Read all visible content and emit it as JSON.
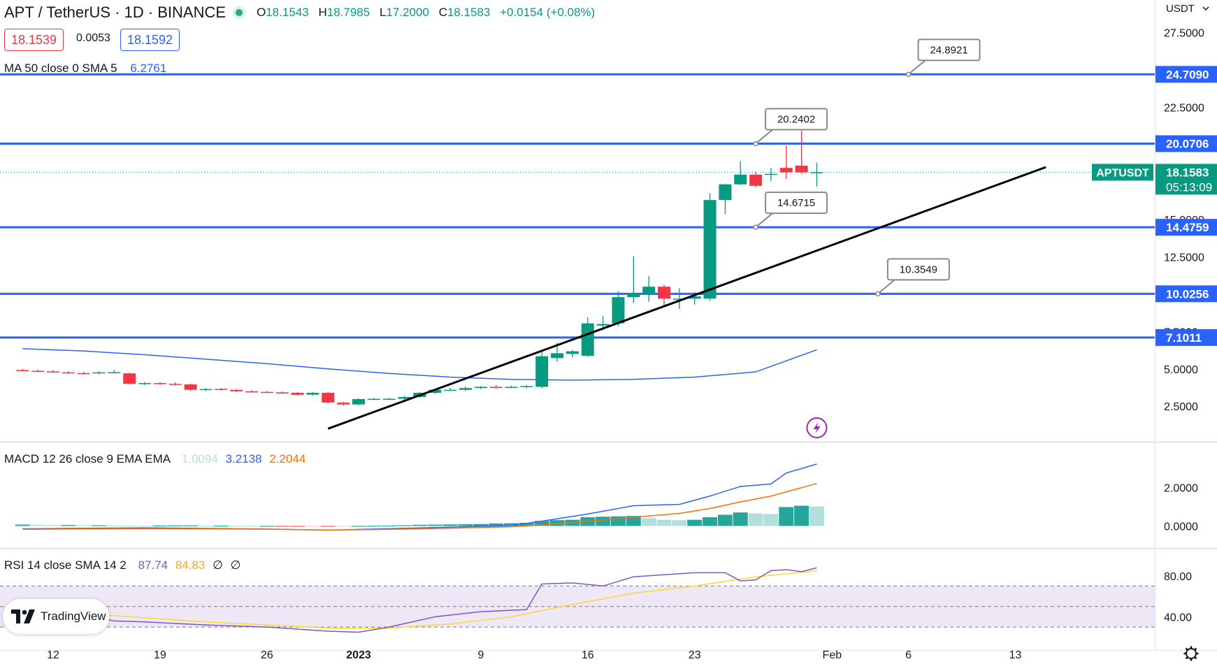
{
  "header": {
    "symbol_line": "APT / TetherUS · 1D · BINANCE",
    "open_label": "O",
    "open": "18.1543",
    "high_label": "H",
    "high": "18.7985",
    "low_label": "L",
    "low": "17.2000",
    "close_label": "C",
    "close": "18.1583",
    "change": "+0.0154 (+0.08%)",
    "sell_price": "18.1539",
    "spread": "0.0053",
    "buy_price": "18.1592"
  },
  "currency_menu": "USDT",
  "ma_legend": {
    "label": "MA 50 close 0 SMA 5",
    "value": "6.2761"
  },
  "macd_legend": {
    "label": "MACD 12 26 close 9 EMA EMA",
    "hist": "1.0094",
    "macd": "3.2138",
    "signal": "2.2044"
  },
  "rsi_legend": {
    "label": "RSI 14 close SMA 14 2",
    "rsi": "87.74",
    "sma": "84.83",
    "v3": "∅",
    "v4": "∅"
  },
  "brand": "TradingView",
  "colors": {
    "up": "#089981",
    "down": "#f23645",
    "level_line": "#2962ff",
    "ma": "#2962ff",
    "macd": "#2962ff",
    "signal": "#ff6d00",
    "rsi": "#7e57c2",
    "rsi_sma": "#fdd835",
    "rsi_band": "#ede7f6"
  },
  "chart_data": [
    {
      "type": "candlestick",
      "title": "APT / TetherUS · 1D · BINANCE",
      "x_ticks": [
        "12",
        "19",
        "26",
        "2023",
        "9",
        "16",
        "23",
        "Feb",
        "6",
        "13"
      ],
      "y_ticks": [
        "2.5000",
        "5.0000",
        "7.5000",
        "10.0000",
        "12.5000",
        "15.0000",
        "17.5000",
        "22.5000",
        "25.0000",
        "27.5000"
      ],
      "ylim": [
        0.5,
        28
      ],
      "candles": [
        {
          "d": "2022-12-10",
          "o": 4.92,
          "h": 5.0,
          "l": 4.82,
          "c": 4.87
        },
        {
          "d": "2022-12-11",
          "o": 4.87,
          "h": 4.95,
          "l": 4.78,
          "c": 4.84
        },
        {
          "d": "2022-12-12",
          "o": 4.84,
          "h": 4.92,
          "l": 4.74,
          "c": 4.77
        },
        {
          "d": "2022-12-13",
          "o": 4.77,
          "h": 4.85,
          "l": 4.66,
          "c": 4.7
        },
        {
          "d": "2022-12-14",
          "o": 4.72,
          "h": 4.82,
          "l": 4.62,
          "c": 4.7
        },
        {
          "d": "2022-12-15",
          "o": 4.7,
          "h": 4.85,
          "l": 4.64,
          "c": 4.77
        },
        {
          "d": "2022-12-16",
          "o": 4.78,
          "h": 4.94,
          "l": 4.7,
          "c": 4.78
        },
        {
          "d": "2022-12-17",
          "o": 4.7,
          "h": 4.75,
          "l": 3.95,
          "c": 4.0
        },
        {
          "d": "2022-12-18",
          "o": 4.0,
          "h": 4.12,
          "l": 3.92,
          "c": 4.05
        },
        {
          "d": "2022-12-19",
          "o": 4.05,
          "h": 4.12,
          "l": 3.95,
          "c": 4.0
        },
        {
          "d": "2022-12-20",
          "o": 4.0,
          "h": 4.1,
          "l": 3.88,
          "c": 3.95
        },
        {
          "d": "2022-12-21",
          "o": 3.96,
          "h": 4.02,
          "l": 3.52,
          "c": 3.6
        },
        {
          "d": "2022-12-22",
          "o": 3.6,
          "h": 3.72,
          "l": 3.52,
          "c": 3.65
        },
        {
          "d": "2022-12-23",
          "o": 3.66,
          "h": 3.72,
          "l": 3.55,
          "c": 3.6
        },
        {
          "d": "2022-12-24",
          "o": 3.6,
          "h": 3.66,
          "l": 3.45,
          "c": 3.5
        },
        {
          "d": "2022-12-25",
          "o": 3.5,
          "h": 3.58,
          "l": 3.42,
          "c": 3.47
        },
        {
          "d": "2022-12-26",
          "o": 3.46,
          "h": 3.52,
          "l": 3.38,
          "c": 3.43
        },
        {
          "d": "2022-12-27",
          "o": 3.43,
          "h": 3.5,
          "l": 3.36,
          "c": 3.4
        },
        {
          "d": "2022-12-28",
          "o": 3.4,
          "h": 3.45,
          "l": 3.22,
          "c": 3.27
        },
        {
          "d": "2022-12-29",
          "o": 3.28,
          "h": 3.45,
          "l": 3.22,
          "c": 3.4
        },
        {
          "d": "2022-12-30",
          "o": 3.4,
          "h": 3.46,
          "l": 2.68,
          "c": 2.75
        },
        {
          "d": "2022-12-31",
          "o": 2.74,
          "h": 2.8,
          "l": 2.55,
          "c": 2.62
        },
        {
          "d": "2023-01-01",
          "o": 2.62,
          "h": 3.05,
          "l": 2.56,
          "c": 2.98
        },
        {
          "d": "2023-01-02",
          "o": 2.98,
          "h": 3.05,
          "l": 2.9,
          "c": 3.0
        },
        {
          "d": "2023-01-03",
          "o": 3.0,
          "h": 3.08,
          "l": 2.92,
          "c": 3.0
        },
        {
          "d": "2023-01-04",
          "o": 3.0,
          "h": 3.2,
          "l": 2.95,
          "c": 3.12
        },
        {
          "d": "2023-01-05",
          "o": 3.12,
          "h": 3.45,
          "l": 3.08,
          "c": 3.4
        },
        {
          "d": "2023-01-06",
          "o": 3.4,
          "h": 3.68,
          "l": 3.32,
          "c": 3.6
        },
        {
          "d": "2023-01-07",
          "o": 3.6,
          "h": 3.72,
          "l": 3.52,
          "c": 3.6
        },
        {
          "d": "2023-01-08",
          "o": 3.6,
          "h": 3.82,
          "l": 3.52,
          "c": 3.72
        },
        {
          "d": "2023-01-09",
          "o": 3.72,
          "h": 3.85,
          "l": 3.65,
          "c": 3.8
        },
        {
          "d": "2023-01-10",
          "o": 3.8,
          "h": 3.92,
          "l": 3.7,
          "c": 3.78
        },
        {
          "d": "2023-01-11",
          "o": 3.78,
          "h": 3.88,
          "l": 3.7,
          "c": 3.8
        },
        {
          "d": "2023-01-12",
          "o": 3.78,
          "h": 3.92,
          "l": 3.7,
          "c": 3.85
        },
        {
          "d": "2023-01-13",
          "o": 3.8,
          "h": 6.15,
          "l": 3.7,
          "c": 5.85
        },
        {
          "d": "2023-01-14",
          "o": 5.72,
          "h": 6.75,
          "l": 5.5,
          "c": 6.05
        },
        {
          "d": "2023-01-15",
          "o": 6.0,
          "h": 6.25,
          "l": 5.78,
          "c": 6.18
        },
        {
          "d": "2023-01-16",
          "o": 5.88,
          "h": 8.45,
          "l": 5.8,
          "c": 8.05
        },
        {
          "d": "2023-01-17",
          "o": 7.9,
          "h": 8.55,
          "l": 7.58,
          "c": 8.0
        },
        {
          "d": "2023-01-18",
          "o": 8.05,
          "h": 10.2,
          "l": 7.85,
          "c": 9.8
        },
        {
          "d": "2023-01-19",
          "o": 9.8,
          "h": 12.55,
          "l": 9.4,
          "c": 10.05
        },
        {
          "d": "2023-01-20",
          "o": 10.02,
          "h": 11.2,
          "l": 9.5,
          "c": 10.5
        },
        {
          "d": "2023-01-21",
          "o": 10.5,
          "h": 10.65,
          "l": 9.25,
          "c": 9.7
        },
        {
          "d": "2023-01-22",
          "o": 9.65,
          "h": 10.4,
          "l": 9.0,
          "c": 9.7
        },
        {
          "d": "2023-01-23",
          "o": 9.7,
          "h": 10.15,
          "l": 9.3,
          "c": 9.85
        },
        {
          "d": "2023-01-24",
          "o": 9.7,
          "h": 16.75,
          "l": 9.55,
          "c": 16.3
        },
        {
          "d": "2023-01-25",
          "o": 16.3,
          "h": 17.4,
          "l": 15.35,
          "c": 17.35
        },
        {
          "d": "2023-01-26",
          "o": 17.35,
          "h": 18.9,
          "l": 17.3,
          "c": 18.0
        },
        {
          "d": "2023-01-27",
          "o": 18.0,
          "h": 18.2,
          "l": 17.15,
          "c": 17.25
        },
        {
          "d": "2023-01-28",
          "o": 18.0,
          "h": 18.45,
          "l": 17.55,
          "c": 18.05
        },
        {
          "d": "2023-01-29",
          "o": 18.45,
          "h": 19.95,
          "l": 17.7,
          "c": 18.15
        },
        {
          "d": "2023-01-30",
          "o": 18.6,
          "h": 21.65,
          "l": 18.05,
          "c": 18.15
        },
        {
          "d": "2023-01-31",
          "o": 18.15,
          "h": 18.8,
          "l": 17.2,
          "c": 18.16
        }
      ],
      "ma50": [
        [
          "2022-12-10",
          6.35
        ],
        [
          "2022-12-14",
          6.2
        ],
        [
          "2022-12-18",
          5.95
        ],
        [
          "2022-12-22",
          5.65
        ],
        [
          "2022-12-26",
          5.35
        ],
        [
          "2022-12-30",
          5.0
        ],
        [
          "2023-01-03",
          4.7
        ],
        [
          "2023-01-07",
          4.45
        ],
        [
          "2023-01-11",
          4.3
        ],
        [
          "2023-01-15",
          4.25
        ],
        [
          "2023-01-19",
          4.3
        ],
        [
          "2023-01-23",
          4.45
        ],
        [
          "2023-01-27",
          4.8
        ],
        [
          "2023-01-31",
          6.28
        ]
      ],
      "levels": [
        {
          "price": 24.709,
          "label": "24.7090"
        },
        {
          "price": 20.0706,
          "label": "20.0706"
        },
        {
          "price": 14.4759,
          "label": "14.4759"
        },
        {
          "price": 10.0256,
          "label": "10.0256"
        },
        {
          "price": 7.1011,
          "label": "7.1011"
        }
      ],
      "callouts": [
        {
          "text": "24.8921",
          "anchor_date": "2023-02-06",
          "price": 24.709
        },
        {
          "text": "20.2402",
          "anchor_date": "2023-01-27",
          "price": 20.0706
        },
        {
          "text": "14.6715",
          "anchor_date": "2023-01-27",
          "price": 14.4759
        },
        {
          "text": "10.3549",
          "anchor_date": "2023-02-04",
          "price": 10.0256
        }
      ],
      "trendline": {
        "from": [
          "2022-12-30",
          1.0
        ],
        "to": [
          "2023-02-15",
          18.5
        ]
      },
      "last_price": {
        "symbol": "APTUSDT",
        "price": "18.1583",
        "value": 18.1583,
        "countdown": "05:13:09"
      }
    },
    {
      "type": "bar+line",
      "title": "MACD 12 26 close 9 EMA EMA",
      "y_ticks": [
        "0.0000",
        "2.0000"
      ],
      "ylim": [
        -0.6,
        3.5
      ],
      "histogram": [
        0.07,
        0.06,
        0.05,
        0.05,
        0.04,
        0.04,
        0.03,
        0.02,
        0.01,
        0.02,
        0.03,
        0.03,
        0.02,
        0.02,
        0.01,
        0.0,
        0.0,
        -0.01,
        -0.02,
        -0.01,
        -0.03,
        -0.02,
        0.0,
        0.01,
        0.02,
        0.04,
        0.06,
        0.07,
        0.08,
        0.09,
        0.1,
        0.13,
        0.14,
        0.16,
        0.26,
        0.3,
        0.32,
        0.45,
        0.48,
        0.5,
        0.52,
        0.4,
        0.32,
        0.3,
        0.32,
        0.45,
        0.58,
        0.7,
        0.65,
        0.62,
        0.98,
        1.05,
        1.0094
      ],
      "macd": [
        [
          "2022-12-10",
          -0.15
        ],
        [
          "2022-12-14",
          -0.12
        ],
        [
          "2022-12-18",
          -0.1
        ],
        [
          "2022-12-22",
          -0.13
        ],
        [
          "2022-12-26",
          -0.16
        ],
        [
          "2022-12-30",
          -0.22
        ],
        [
          "2023-01-03",
          -0.14
        ],
        [
          "2023-01-07",
          -0.06
        ],
        [
          "2023-01-11",
          0.02
        ],
        [
          "2023-01-13",
          0.25
        ],
        [
          "2023-01-16",
          0.62
        ],
        [
          "2023-01-19",
          1.05
        ],
        [
          "2023-01-22",
          1.12
        ],
        [
          "2023-01-24",
          1.55
        ],
        [
          "2023-01-26",
          2.05
        ],
        [
          "2023-01-28",
          2.18
        ],
        [
          "2023-01-29",
          2.75
        ],
        [
          "2023-01-31",
          3.2138
        ]
      ],
      "signal": [
        [
          "2022-12-10",
          -0.18
        ],
        [
          "2022-12-14",
          -0.15
        ],
        [
          "2022-12-18",
          -0.14
        ],
        [
          "2022-12-22",
          -0.15
        ],
        [
          "2022-12-26",
          -0.17
        ],
        [
          "2022-12-30",
          -0.21
        ],
        [
          "2023-01-03",
          -0.18
        ],
        [
          "2023-01-07",
          -0.12
        ],
        [
          "2023-01-11",
          -0.04
        ],
        [
          "2023-01-13",
          0.05
        ],
        [
          "2023-01-16",
          0.25
        ],
        [
          "2023-01-19",
          0.45
        ],
        [
          "2023-01-22",
          0.65
        ],
        [
          "2023-01-24",
          0.9
        ],
        [
          "2023-01-26",
          1.25
        ],
        [
          "2023-01-28",
          1.55
        ],
        [
          "2023-01-31",
          2.2044
        ]
      ]
    },
    {
      "type": "line",
      "title": "RSI 14 close SMA 14 2",
      "y_ticks": [
        "40.00",
        "80.00"
      ],
      "ylim": [
        11,
        103
      ],
      "band": [
        30,
        70
      ],
      "mid": 50,
      "rsi": [
        [
          "2022-12-10",
          48
        ],
        [
          "2022-12-14",
          42
        ],
        [
          "2022-12-16",
          36
        ],
        [
          "2022-12-18",
          35
        ],
        [
          "2022-12-22",
          32
        ],
        [
          "2022-12-26",
          30
        ],
        [
          "2022-12-30",
          26
        ],
        [
          "2023-01-01",
          25
        ],
        [
          "2023-01-03",
          30
        ],
        [
          "2023-01-06",
          40
        ],
        [
          "2023-01-09",
          45
        ],
        [
          "2023-01-12",
          47
        ],
        [
          "2023-01-13",
          72
        ],
        [
          "2023-01-15",
          73
        ],
        [
          "2023-01-17",
          70
        ],
        [
          "2023-01-19",
          79
        ],
        [
          "2023-01-21",
          81
        ],
        [
          "2023-01-23",
          83
        ],
        [
          "2023-01-25",
          83
        ],
        [
          "2023-01-26",
          75
        ],
        [
          "2023-01-27",
          76
        ],
        [
          "2023-01-28",
          85
        ],
        [
          "2023-01-29",
          86
        ],
        [
          "2023-01-30",
          84
        ],
        [
          "2023-01-31",
          87.74
        ]
      ],
      "rsi_sma": [
        [
          "2022-12-10",
          46
        ],
        [
          "2022-12-14",
          43
        ],
        [
          "2022-12-18",
          39
        ],
        [
          "2022-12-22",
          35
        ],
        [
          "2022-12-26",
          32
        ],
        [
          "2022-12-30",
          29
        ],
        [
          "2023-01-03",
          29
        ],
        [
          "2023-01-07",
          33
        ],
        [
          "2023-01-11",
          40
        ],
        [
          "2023-01-15",
          52
        ],
        [
          "2023-01-19",
          63
        ],
        [
          "2023-01-23",
          70
        ],
        [
          "2023-01-27",
          79
        ],
        [
          "2023-01-31",
          84.83
        ]
      ]
    }
  ]
}
